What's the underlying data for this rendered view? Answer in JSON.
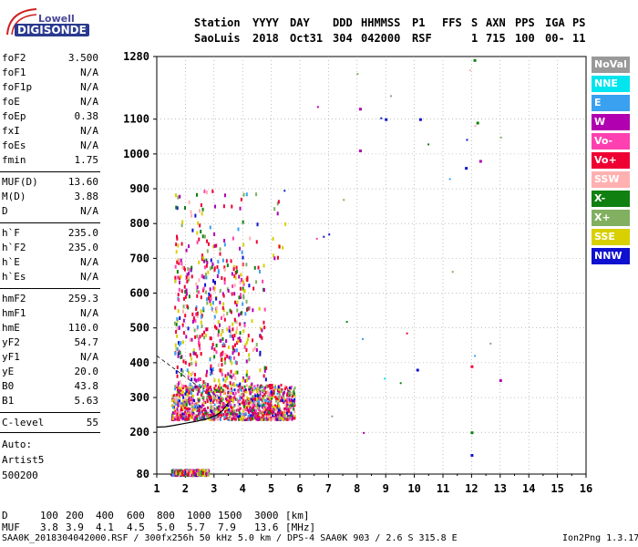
{
  "logo": {
    "line1": "Lowell",
    "line2": "DIGISONDE"
  },
  "header": {
    "row1": [
      {
        "label": "Station"
      },
      {
        "label": "YYYY"
      },
      {
        "label": "DAY"
      },
      {
        "label": "DDD"
      },
      {
        "label": "HHMMSS"
      },
      {
        "label": "P1"
      },
      {
        "label": "FFS"
      },
      {
        "label": "S"
      },
      {
        "label": "AXN"
      },
      {
        "label": "PPS"
      },
      {
        "label": "IGA"
      },
      {
        "label": "PS"
      }
    ],
    "row2": [
      {
        "label": "SaoLuis"
      },
      {
        "label": "2018"
      },
      {
        "label": "Oct31"
      },
      {
        "label": "304"
      },
      {
        "label": "042000"
      },
      {
        "label": "RSF"
      },
      {
        "label": "1"
      },
      {
        "label": "715"
      },
      {
        "label": "100"
      },
      {
        "label": "00-"
      },
      {
        "label": "11"
      }
    ]
  },
  "params": [
    {
      "name": "foF2",
      "value": "3.500"
    },
    {
      "name": "foF1",
      "value": "N/A"
    },
    {
      "name": "foF1p",
      "value": "N/A"
    },
    {
      "name": "foE",
      "value": "N/A"
    },
    {
      "name": "foEp",
      "value": "0.38"
    },
    {
      "name": "fxI",
      "value": "N/A"
    },
    {
      "name": "foEs",
      "value": "N/A"
    },
    {
      "name": "fmin",
      "value": "1.75"
    },
    {
      "name": "MUF(D)",
      "value": "13.60"
    },
    {
      "name": "M(D)",
      "value": "3.88"
    },
    {
      "name": "D",
      "value": "N/A"
    },
    {
      "name": "h`F",
      "value": "235.0"
    },
    {
      "name": "h`F2",
      "value": "235.0"
    },
    {
      "name": "h`E",
      "value": "N/A"
    },
    {
      "name": "h`Es",
      "value": "N/A"
    },
    {
      "name": "hmF2",
      "value": "259.3"
    },
    {
      "name": "hmF1",
      "value": "N/A"
    },
    {
      "name": "hmE",
      "value": "110.0"
    },
    {
      "name": "yF2",
      "value": "54.7"
    },
    {
      "name": "yF1",
      "value": "N/A"
    },
    {
      "name": "yE",
      "value": "20.0"
    },
    {
      "name": "B0",
      "value": "43.8"
    },
    {
      "name": "B1",
      "value": "5.63"
    },
    {
      "name": "C-level",
      "value": "55"
    }
  ],
  "auto": {
    "line1": "Auto:",
    "line2": "Artist5",
    "line3": "500200"
  },
  "legend": [
    {
      "label": "NoVal",
      "color": "#999999"
    },
    {
      "label": "NNE",
      "color": "#00e5ee"
    },
    {
      "label": "E",
      "color": "#3aa0f0"
    },
    {
      "label": "W",
      "color": "#b000b0"
    },
    {
      "label": "Vo-",
      "color": "#ff40b0"
    },
    {
      "label": "Vo+",
      "color": "#ee0033"
    },
    {
      "label": "SSW",
      "color": "#ffb0b0"
    },
    {
      "label": "X-",
      "color": "#108010"
    },
    {
      "label": "X+",
      "color": "#80b060"
    },
    {
      "label": "SSE",
      "color": "#d8d000"
    },
    {
      "label": "NNW",
      "color": "#1010d0"
    }
  ],
  "chart_data": {
    "type": "scatter",
    "title": "",
    "xlabel": "",
    "ylabel": "",
    "xlim": [
      1,
      16
    ],
    "ylim": [
      80,
      1280
    ],
    "x_ticks": [
      1,
      2,
      3,
      4,
      5,
      6,
      7,
      8,
      9,
      10,
      11,
      12,
      13,
      14,
      15,
      16
    ],
    "y_ticks": [
      80,
      200,
      300,
      400,
      500,
      600,
      700,
      800,
      900,
      1000,
      1100,
      1280
    ],
    "grid": true,
    "legend_position": "right",
    "trace": {
      "name": "",
      "x": [
        1.0,
        1.3,
        1.6,
        2.0,
        2.4,
        2.8,
        3.1,
        3.3,
        3.5
      ],
      "y": [
        215,
        216,
        220,
        226,
        232,
        240,
        250,
        262,
        285
      ]
    },
    "clusters": [
      {
        "x_range": [
          1.5,
          5.8
        ],
        "y_range": [
          240,
          340
        ],
        "density": "high"
      },
      {
        "x_range": [
          1.6,
          4.8
        ],
        "y_range": [
          340,
          700
        ],
        "density": "medium"
      },
      {
        "x_range": [
          1.6,
          5.5
        ],
        "y_range": [
          700,
          900
        ],
        "density": "low"
      },
      {
        "x_range": [
          1.5,
          2.8
        ],
        "y_range": [
          82,
          95
        ],
        "density": "medium"
      }
    ],
    "sparse_points": [
      {
        "x": 12.1,
        "y": 1270,
        "color": "#108010"
      },
      {
        "x": 8.1,
        "y": 1130,
        "color": "#b000b0"
      },
      {
        "x": 9.0,
        "y": 1100,
        "color": "#1010d0"
      },
      {
        "x": 10.2,
        "y": 1100,
        "color": "#1010d0"
      },
      {
        "x": 12.2,
        "y": 1090,
        "color": "#108010"
      },
      {
        "x": 8.1,
        "y": 1010,
        "color": "#b000b0"
      },
      {
        "x": 11.8,
        "y": 960,
        "color": "#1010d0"
      },
      {
        "x": 12.3,
        "y": 980,
        "color": "#b000b0"
      },
      {
        "x": 10.1,
        "y": 380,
        "color": "#1010d0"
      },
      {
        "x": 12.0,
        "y": 390,
        "color": "#ee0033"
      },
      {
        "x": 13.0,
        "y": 350,
        "color": "#b000b0"
      },
      {
        "x": 12.0,
        "y": 200,
        "color": "#108010"
      },
      {
        "x": 12.0,
        "y": 135,
        "color": "#1010d0"
      }
    ],
    "annotations": {
      "d_row_label": "D",
      "d_values": [
        "100",
        "200",
        "400",
        "600",
        "800",
        "1000",
        "1500",
        "3000"
      ],
      "d_unit": "[km]",
      "muf_row_label": "MUF",
      "muf_values": [
        "3.8",
        "3.9",
        "4.1",
        "4.5",
        "5.0",
        "5.7",
        "7.9",
        "13.6"
      ],
      "muf_unit": "[MHz]"
    }
  },
  "footer": {
    "left": "SAA0K_2018304042000.RSF / 300fx256h 50 kHz 5.0 km / DPS-4 SAA0K 903 / 2.6 S 315.8 E",
    "right": "Ion2Png 1.3.17"
  }
}
